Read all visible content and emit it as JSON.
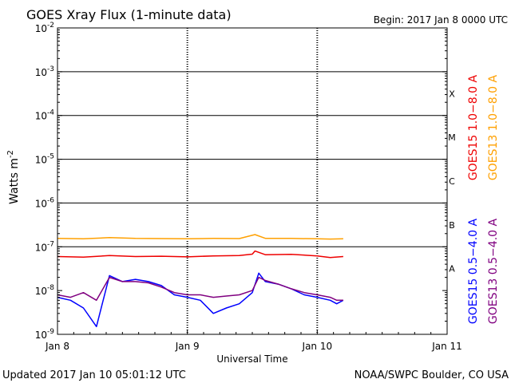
{
  "chart_data": {
    "type": "line",
    "title": "GOES Xray Flux (1-minute data)",
    "begin_label": "Begin:  2017 Jan 8 0000 UTC",
    "ylabel_base": "Watts m",
    "ylabel_exp": "-2",
    "xlabel": "Universal Time",
    "updated": "Updated 2017 Jan 10 05:01:12 UTC",
    "credit": "NOAA/SWPC Boulder, CO USA",
    "y_scale": "log",
    "ylim": [
      1e-09,
      0.01
    ],
    "y_ticks": [
      {
        "base": "10",
        "exp": "-9",
        "value": 1e-09
      },
      {
        "base": "10",
        "exp": "-8",
        "value": 1e-08
      },
      {
        "base": "10",
        "exp": "-7",
        "value": 1e-07
      },
      {
        "base": "10",
        "exp": "-6",
        "value": 1e-06
      },
      {
        "base": "10",
        "exp": "-5",
        "value": 1e-05
      },
      {
        "base": "10",
        "exp": "-4",
        "value": 0.0001
      },
      {
        "base": "10",
        "exp": "-3",
        "value": 0.001
      },
      {
        "base": "10",
        "exp": "-2",
        "value": 0.01
      }
    ],
    "x_unit": "days since Jan 8 0000 UTC",
    "xlim": [
      0,
      3
    ],
    "x_ticks": [
      {
        "label": "Jan 8",
        "value": 0
      },
      {
        "label": "Jan 9",
        "value": 1
      },
      {
        "label": "Jan 10",
        "value": 2
      },
      {
        "label": "Jan 11",
        "value": 3
      }
    ],
    "flare_classes": [
      {
        "label": "A",
        "low": 1e-08,
        "high": 1e-07
      },
      {
        "label": "B",
        "low": 1e-07,
        "high": 1e-06
      },
      {
        "label": "C",
        "low": 1e-06,
        "high": 1e-05
      },
      {
        "label": "M",
        "low": 1e-05,
        "high": 0.0001
      },
      {
        "label": "X",
        "low": 0.0001,
        "high": 0.001
      }
    ],
    "grid": "horizontal lines at each decade from 1e-7 to 1e-3; dotted verticals at day boundaries",
    "legend_placement": "right, vertical",
    "series": [
      {
        "name": "GOES15 1.0-8.0 A",
        "color": "#ee0000",
        "x": [
          0.0,
          0.2,
          0.4,
          0.6,
          0.8,
          1.0,
          1.2,
          1.4,
          1.5,
          1.52,
          1.6,
          1.8,
          2.0,
          2.1,
          2.2
        ],
        "y": [
          6e-08,
          5.8e-08,
          6.3e-08,
          6e-08,
          6.1e-08,
          5.9e-08,
          6.2e-08,
          6.3e-08,
          6.8e-08,
          8e-08,
          6.6e-08,
          6.7e-08,
          6.2e-08,
          5.7e-08,
          6e-08
        ]
      },
      {
        "name": "GOES13 1.0-8.0 A",
        "color": "#ffa000",
        "x": [
          0.0,
          0.2,
          0.4,
          0.6,
          0.8,
          1.0,
          1.2,
          1.4,
          1.52,
          1.6,
          1.8,
          2.0,
          2.1,
          2.2
        ],
        "y": [
          1.55e-07,
          1.52e-07,
          1.62e-07,
          1.55e-07,
          1.54e-07,
          1.53e-07,
          1.55e-07,
          1.54e-07,
          1.9e-07,
          1.56e-07,
          1.55e-07,
          1.52e-07,
          1.5e-07,
          1.52e-07
        ]
      },
      {
        "name": "GOES15 0.5-4.0 A",
        "color": "#0000ff",
        "x": [
          0.0,
          0.1,
          0.2,
          0.3,
          0.4,
          0.5,
          0.6,
          0.7,
          0.8,
          0.9,
          1.0,
          1.1,
          1.2,
          1.3,
          1.4,
          1.5,
          1.55,
          1.6,
          1.7,
          1.8,
          1.9,
          2.0,
          2.1,
          2.15,
          2.2
        ],
        "y": [
          7e-09,
          6e-09,
          4e-09,
          1.5e-09,
          2.2e-08,
          1.6e-08,
          1.8e-08,
          1.6e-08,
          1.3e-08,
          8e-09,
          7e-09,
          6e-09,
          3e-09,
          4e-09,
          5e-09,
          9e-09,
          2.5e-08,
          1.6e-08,
          1.4e-08,
          1.1e-08,
          8e-09,
          7e-09,
          6e-09,
          5e-09,
          6e-09
        ]
      },
      {
        "name": "GOES13 0.5-4.0 A",
        "color": "#800080",
        "x": [
          0.0,
          0.1,
          0.2,
          0.3,
          0.4,
          0.5,
          0.6,
          0.7,
          0.8,
          0.9,
          1.0,
          1.1,
          1.2,
          1.3,
          1.4,
          1.5,
          1.55,
          1.6,
          1.7,
          1.8,
          1.9,
          2.0,
          2.1,
          2.15,
          2.2
        ],
        "y": [
          8e-09,
          7e-09,
          9e-09,
          6e-09,
          2e-08,
          1.6e-08,
          1.6e-08,
          1.5e-08,
          1.2e-08,
          9e-09,
          8e-09,
          8e-09,
          7e-09,
          7.5e-09,
          8e-09,
          1e-08,
          2e-08,
          1.7e-08,
          1.4e-08,
          1.1e-08,
          9e-09,
          8e-09,
          7e-09,
          6e-09,
          6e-09
        ]
      }
    ]
  }
}
